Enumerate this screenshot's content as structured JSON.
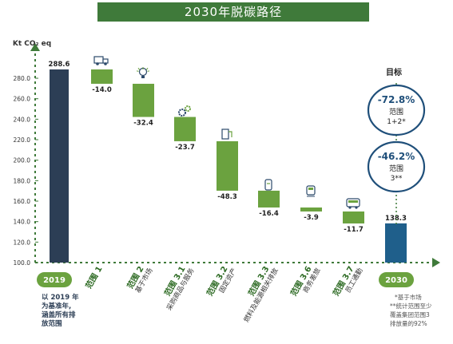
{
  "title": "2030年脱碳路径",
  "yunit": "Kt CO₂ eq",
  "target_label": "目标",
  "targets": [
    {
      "pct": "-72.8%",
      "line1": "范围",
      "line2": "1+2*"
    },
    {
      "pct": "-46.2%",
      "line1": "范围",
      "line2": "3**"
    }
  ],
  "baseline": {
    "year": "2019",
    "note_lines": [
      "以 2019 年",
      "为基准年,",
      "涵盖所有排",
      "放范围"
    ]
  },
  "endpoint": {
    "year": "2030"
  },
  "footnote_lines": [
    "*基于市场",
    "**统计范围至少",
    "覆盖集团范围3",
    "排放量的92%"
  ],
  "colors": {
    "baseline_bar": "#2c3e55",
    "step_bar": "#6ba23f",
    "end_bar": "#1f5f8b",
    "accent": "#5a8f2e"
  },
  "chart_data": {
    "type": "waterfall",
    "ylim": [
      100,
      290
    ],
    "yticks": [
      "100.0",
      "120.0",
      "140.0",
      "160.0",
      "180.0",
      "200.0",
      "220.0",
      "240.0",
      "260.0",
      "280.0"
    ],
    "ytick_values": [
      100,
      120,
      140,
      160,
      180,
      200,
      220,
      240,
      260,
      280
    ],
    "categories": [
      "2019",
      "范围 1",
      "范围 2",
      "范围 3.1",
      "范围 3.2",
      "范围 3.3",
      "范围 3.6",
      "范围 3.7",
      "2030"
    ],
    "category_sublabels": [
      "",
      "",
      "基于市场",
      "采购商品与服务",
      "固定资产",
      "燃料及能源相关排放",
      "商务差旅",
      "员工通勤",
      ""
    ],
    "values": [
      288.6,
      -14.0,
      -32.4,
      -23.7,
      -48.3,
      -16.4,
      -3.9,
      -11.7,
      138.3
    ],
    "value_labels": [
      "288.6",
      "-14.0",
      "-32.4",
      "-23.7",
      "-48.3",
      "-16.4",
      "-3.9",
      "-11.7",
      "138.3"
    ],
    "icons": [
      "",
      "truck-icon",
      "lightbulb-icon",
      "gears-icon",
      "fuel-pump-icon",
      "gas-tank-icon",
      "train-icon",
      "bus-icon",
      ""
    ]
  }
}
